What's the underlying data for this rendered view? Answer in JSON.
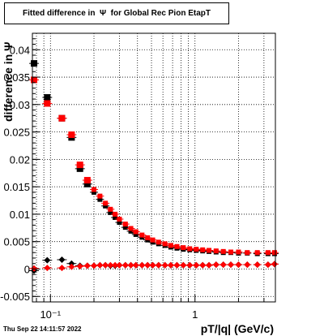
{
  "title": "Fitted difference in  Ψ  for Global Rec Pion EtapT",
  "timestamp": "Thu Sep 22 14:11:57 2022",
  "chart_data": {
    "type": "scatter",
    "title": "Fitted difference in  Ψ  for Global Rec Pion EtapT",
    "xlabel": "pT/|q| (GeV/c)",
    "ylabel": "difference in Ψ",
    "x_scale": "log",
    "xlim": [
      0.075,
      3.6
    ],
    "ylim": [
      -0.006,
      0.043
    ],
    "grid": true,
    "x_ticks": [
      {
        "value": 0.1,
        "label": "10⁻¹"
      },
      {
        "value": 1,
        "label": "1"
      }
    ],
    "y_ticks": [
      {
        "value": -0.005,
        "label": "-0.005"
      },
      {
        "value": 0,
        "label": "0"
      },
      {
        "value": 0.005,
        "label": "0.005"
      },
      {
        "value": 0.01,
        "label": "0.01"
      },
      {
        "value": 0.015,
        "label": "0.015"
      },
      {
        "value": 0.02,
        "label": "0.02"
      },
      {
        "value": 0.025,
        "label": "0.025"
      },
      {
        "value": 0.03,
        "label": "0.03"
      },
      {
        "value": 0.035,
        "label": "0.035"
      },
      {
        "value": 0.04,
        "label": "0.04"
      }
    ],
    "series": [
      {
        "color": "#000000",
        "marker": "square",
        "x": [
          0.077,
          0.095,
          0.12,
          0.14,
          0.16,
          0.18,
          0.2,
          0.22,
          0.24,
          0.26,
          0.28,
          0.3,
          0.33,
          0.36,
          0.39,
          0.43,
          0.47,
          0.51,
          0.56,
          0.62,
          0.68,
          0.75,
          0.83,
          0.92,
          1.02,
          1.13,
          1.25,
          1.4,
          1.57,
          1.77,
          2.0,
          2.3,
          2.7,
          3.2,
          3.55
        ],
        "y": [
          0.0375,
          0.0313,
          0.0275,
          0.024,
          0.0183,
          0.0155,
          0.014,
          0.0127,
          0.0115,
          0.0103,
          0.0094,
          0.0085,
          0.0076,
          0.0069,
          0.0063,
          0.0058,
          0.0053,
          0.0049,
          0.0046,
          0.0043,
          0.004,
          0.0038,
          0.0036,
          0.0035,
          0.0034,
          0.0033,
          0.0032,
          0.0031,
          0.003,
          0.003,
          0.0029,
          0.0029,
          0.0028,
          0.0028,
          0.0028
        ]
      },
      {
        "color": "#ff0000",
        "marker": "square",
        "x": [
          0.077,
          0.095,
          0.12,
          0.14,
          0.16,
          0.18,
          0.2,
          0.22,
          0.24,
          0.26,
          0.28,
          0.3,
          0.33,
          0.36,
          0.39,
          0.43,
          0.47,
          0.51,
          0.56,
          0.62,
          0.68,
          0.75,
          0.83,
          0.92,
          1.02,
          1.13,
          1.25,
          1.4,
          1.57,
          1.77,
          2.0,
          2.3,
          2.7,
          3.2,
          3.55
        ],
        "y": [
          0.0345,
          0.0302,
          0.0275,
          0.0245,
          0.019,
          0.0162,
          0.0145,
          0.0133,
          0.012,
          0.0109,
          0.01,
          0.0091,
          0.0082,
          0.0074,
          0.0068,
          0.0062,
          0.0057,
          0.0053,
          0.0049,
          0.0046,
          0.0043,
          0.0041,
          0.0039,
          0.0037,
          0.0036,
          0.0035,
          0.0034,
          0.0033,
          0.0032,
          0.0031,
          0.0031,
          0.003,
          0.003,
          0.003,
          0.003
        ]
      },
      {
        "color": "#000000",
        "marker": "diamond",
        "x": [
          0.077,
          0.095,
          0.12,
          0.14,
          0.16,
          0.18,
          0.2,
          0.22,
          0.24,
          0.26,
          0.28,
          0.3,
          0.33,
          0.36,
          0.39,
          0.43,
          0.47,
          0.51,
          0.56,
          0.62,
          0.68,
          0.75,
          0.83,
          0.92,
          1.02,
          1.13,
          1.25,
          1.4,
          1.57,
          1.77,
          2.0,
          2.3,
          2.7,
          3.2,
          3.55
        ],
        "y": [
          -0.0003,
          0.0016,
          0.0017,
          0.001,
          0.0006,
          0.0006,
          0.0006,
          0.0007,
          0.0007,
          0.0006,
          0.0006,
          0.0007,
          0.0007,
          0.0007,
          0.0007,
          0.0007,
          0.0007,
          0.0007,
          0.0007,
          0.0007,
          0.0007,
          0.0007,
          0.0007,
          0.0007,
          0.0007,
          0.0007,
          0.0007,
          0.0008,
          0.0008,
          0.0008,
          0.0008,
          0.0008,
          0.0008,
          0.0008,
          0.0009
        ]
      },
      {
        "color": "#ff0000",
        "marker": "diamond",
        "x": [
          0.077,
          0.095,
          0.12,
          0.14,
          0.16,
          0.18,
          0.2,
          0.22,
          0.24,
          0.26,
          0.28,
          0.3,
          0.33,
          0.36,
          0.39,
          0.43,
          0.47,
          0.51,
          0.56,
          0.62,
          0.68,
          0.75,
          0.83,
          0.92,
          1.02,
          1.13,
          1.25,
          1.4,
          1.57,
          1.77,
          2.0,
          2.3,
          2.7,
          3.2,
          3.55
        ],
        "y": [
          0.0001,
          0.0002,
          0.0002,
          0.0004,
          0.0005,
          0.0006,
          0.0006,
          0.0007,
          0.0007,
          0.0007,
          0.0007,
          0.0007,
          0.0007,
          0.0007,
          0.0007,
          0.0007,
          0.0007,
          0.0007,
          0.0007,
          0.0007,
          0.0007,
          0.0007,
          0.0007,
          0.0007,
          0.0007,
          0.0007,
          0.0007,
          0.0008,
          0.0008,
          0.0008,
          0.0008,
          0.0008,
          0.0008,
          0.0008,
          0.0009
        ]
      }
    ]
  }
}
